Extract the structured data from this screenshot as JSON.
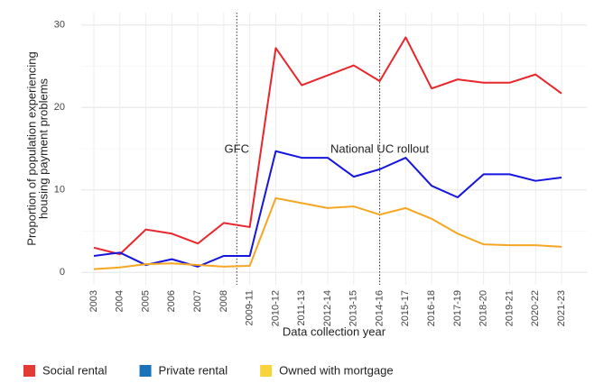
{
  "chart_data": {
    "type": "line",
    "xlabel": "Data collection year",
    "ylabel": [
      "Proportion of population experiencing",
      "housing payment problems"
    ],
    "categories": [
      "2003",
      "2004",
      "2005",
      "2006",
      "2007",
      "2008",
      "2009-11",
      "2010-12",
      "2011-13",
      "2012-14",
      "2013-15",
      "2014-16",
      "2015-17",
      "2016-18",
      "2017-19",
      "2018-20",
      "2019-21",
      "2020-22",
      "2021-23"
    ],
    "series": [
      {
        "name": "Social rental",
        "color": "#e8262b",
        "legend_color": "#e53935",
        "values": [
          3.0,
          2.2,
          5.2,
          4.7,
          3.5,
          6.0,
          5.5,
          27.2,
          22.7,
          23.9,
          25.1,
          23.2,
          28.5,
          22.3,
          23.4,
          23.0,
          23.0,
          24.0,
          21.7
        ]
      },
      {
        "name": "Private rental",
        "color": "#1515e0",
        "legend_color": "#1a73b8",
        "values": [
          2.0,
          2.4,
          0.9,
          1.6,
          0.7,
          2.0,
          2.0,
          14.7,
          13.9,
          13.9,
          11.6,
          12.5,
          13.9,
          10.5,
          9.1,
          11.9,
          11.9,
          11.1,
          11.5
        ]
      },
      {
        "name": "Owned with mortgage",
        "color": "#f5a623",
        "legend_color": "#f9d33a",
        "values": [
          0.4,
          0.6,
          1.0,
          1.1,
          0.9,
          0.7,
          0.8,
          9.0,
          8.4,
          7.8,
          8.0,
          7.0,
          7.8,
          6.5,
          4.7,
          3.4,
          3.3,
          3.3,
          3.1
        ]
      }
    ],
    "annotations": [
      {
        "label": "GFC",
        "x": 5.5
      },
      {
        "label": "National UC rollout",
        "x": 11
      }
    ],
    "ylim": [
      -1.5,
      31.5
    ],
    "yticks": [
      0,
      10,
      20,
      30
    ],
    "grid": true,
    "legend": "bottom"
  }
}
